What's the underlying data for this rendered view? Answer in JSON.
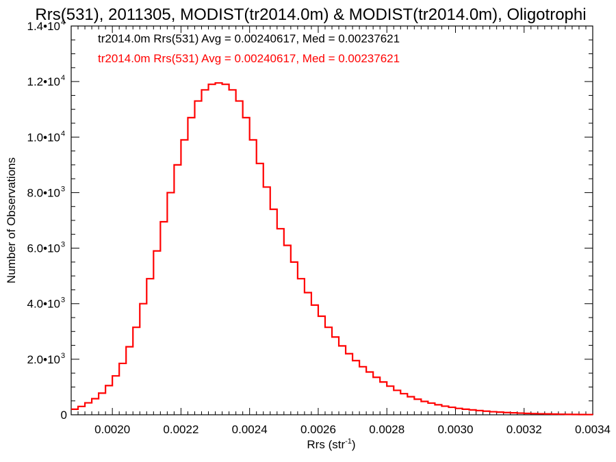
{
  "chart_data": {
    "type": "line",
    "style": "step",
    "title": "Rrs(531), 2011305, MODIST(tr2014.0m) & MODIST(tr2014.0m), Oligotrophi",
    "xlabel": "Rrs (str",
    "xlabel_sup": "-1",
    "xlabel_end": ")",
    "ylabel": "Number of Observations",
    "xlim": [
      0.00188,
      0.0034
    ],
    "ylim": [
      0,
      14000
    ],
    "grid": false,
    "x_ticks": [
      {
        "value": 0.002,
        "label": "0.0020"
      },
      {
        "value": 0.0022,
        "label": "0.0022"
      },
      {
        "value": 0.0024,
        "label": "0.0024"
      },
      {
        "value": 0.0026,
        "label": "0.0026"
      },
      {
        "value": 0.0028,
        "label": "0.0028"
      },
      {
        "value": 0.003,
        "label": "0.0030"
      },
      {
        "value": 0.0032,
        "label": "0.0032"
      },
      {
        "value": 0.0034,
        "label": "0.0034"
      }
    ],
    "y_ticks": [
      {
        "value": 0,
        "label": "0",
        "exp": ""
      },
      {
        "value": 2000,
        "label": "2.0•10",
        "exp": "3"
      },
      {
        "value": 4000,
        "label": "4.0•10",
        "exp": "3"
      },
      {
        "value": 6000,
        "label": "6.0•10",
        "exp": "3"
      },
      {
        "value": 8000,
        "label": "8.0•10",
        "exp": "3"
      },
      {
        "value": 10000,
        "label": "1.0•10",
        "exp": "4"
      },
      {
        "value": 12000,
        "label": "1.2•10",
        "exp": "4"
      },
      {
        "value": 14000,
        "label": "1.4•10",
        "exp": "4"
      }
    ],
    "legend_placement": "top-left",
    "annotations": [
      {
        "text": "tr2014.0m Rrs(531) Avg = 0.00240617, Med = 0.00237621",
        "color": "#000000"
      },
      {
        "text": "tr2014.0m Rrs(531) Avg = 0.00240617, Med = 0.00237621",
        "color": "#ff0000"
      }
    ],
    "series": [
      {
        "color": "#ff0000",
        "x": [
          0.00188,
          0.0019,
          0.00192,
          0.00194,
          0.00196,
          0.00198,
          0.002,
          0.00202,
          0.00204,
          0.00206,
          0.00208,
          0.0021,
          0.00212,
          0.00214,
          0.00216,
          0.00218,
          0.0022,
          0.00222,
          0.00224,
          0.00226,
          0.00228,
          0.0023,
          0.00232,
          0.00234,
          0.00236,
          0.00238,
          0.0024,
          0.00242,
          0.00244,
          0.00246,
          0.00248,
          0.0025,
          0.00252,
          0.00254,
          0.00256,
          0.00258,
          0.0026,
          0.00262,
          0.00264,
          0.00266,
          0.00268,
          0.0027,
          0.00272,
          0.00274,
          0.00276,
          0.00278,
          0.0028,
          0.00282,
          0.00284,
          0.00286,
          0.00288,
          0.0029,
          0.00292,
          0.00294,
          0.00296,
          0.00298,
          0.003,
          0.00302,
          0.00304,
          0.00306,
          0.00308,
          0.0031,
          0.00312,
          0.00314,
          0.00316,
          0.00318,
          0.0032,
          0.00322,
          0.00324,
          0.00326,
          0.00328,
          0.0033,
          0.00332,
          0.00334,
          0.00336,
          0.00338,
          0.0034
        ],
        "values": [
          200,
          300,
          430,
          580,
          780,
          1050,
          1400,
          1850,
          2450,
          3150,
          4000,
          4900,
          5900,
          6950,
          8000,
          9000,
          9900,
          10700,
          11300,
          11700,
          11900,
          11950,
          11900,
          11700,
          11300,
          10700,
          9900,
          9050,
          8200,
          7400,
          6700,
          6100,
          5500,
          4900,
          4400,
          3950,
          3550,
          3150,
          2800,
          2480,
          2200,
          1950,
          1730,
          1540,
          1350,
          1180,
          1030,
          880,
          760,
          650,
          560,
          480,
          420,
          360,
          310,
          270,
          230,
          200,
          175,
          150,
          130,
          110,
          95,
          80,
          70,
          60,
          50,
          42,
          35,
          30,
          25,
          20,
          16,
          12,
          10,
          8,
          6
        ]
      }
    ]
  }
}
